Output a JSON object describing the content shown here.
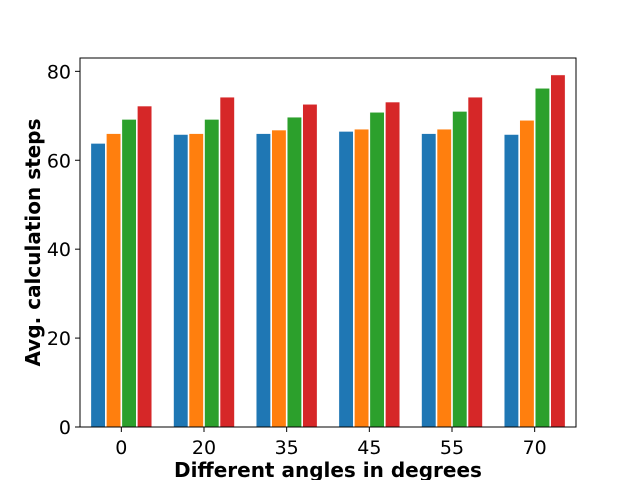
{
  "chart_data": {
    "type": "bar",
    "title": "",
    "xlabel": "Different angles in degrees",
    "ylabel": "Avg. calculation steps",
    "categories": [
      "0",
      "20",
      "35",
      "45",
      "55",
      "70"
    ],
    "ylim": [
      0,
      83
    ],
    "yticks": [
      0,
      20,
      40,
      60,
      80
    ],
    "grid": false,
    "legend": "none",
    "series": [
      {
        "color": "#1f77b4",
        "values": [
          63.8,
          65.8,
          66.0,
          66.5,
          66.0,
          65.8
        ]
      },
      {
        "color": "#ff7f0e",
        "values": [
          66.0,
          66.0,
          66.8,
          67.0,
          67.0,
          69.0
        ]
      },
      {
        "color": "#2ca02c",
        "values": [
          69.2,
          69.2,
          69.7,
          70.8,
          71.0,
          76.2
        ]
      },
      {
        "color": "#d62728",
        "values": [
          72.2,
          74.2,
          72.6,
          73.1,
          74.2,
          79.2
        ]
      }
    ]
  }
}
